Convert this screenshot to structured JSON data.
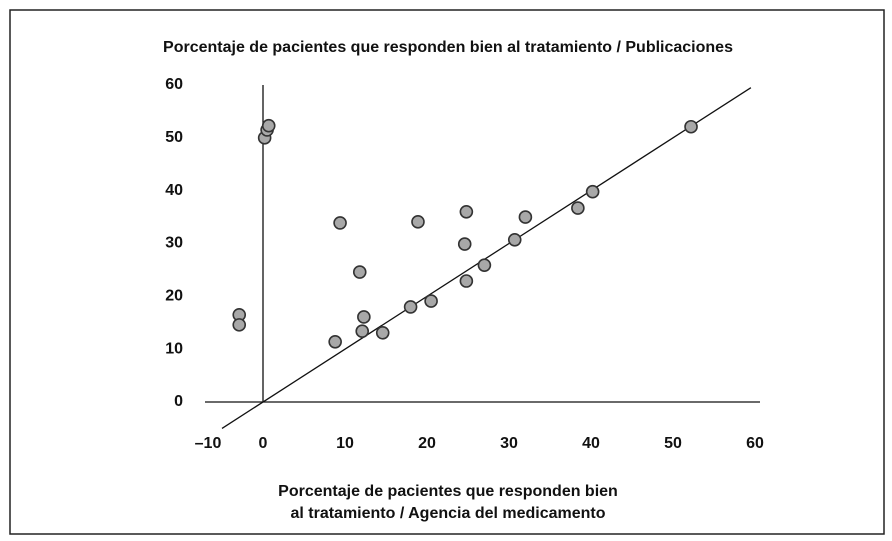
{
  "chart_data": {
    "type": "scatter",
    "title": "Porcentaje de pacientes que responden bien al tratamiento / Publicaciones",
    "xlabel": [
      "Porcentaje de pacientes que responden bien",
      "al tratamiento / Agencia del medicamento"
    ],
    "x": [
      -2.9,
      -2.9,
      0.2,
      0.5,
      0.7,
      9.4,
      8.8,
      11.8,
      12.3,
      12.1,
      14.6,
      18,
      18.9,
      20.5,
      24.8,
      24.6,
      24.8,
      27,
      30.7,
      32,
      38.4,
      40.2,
      52.2
    ],
    "values": [
      16.5,
      14.6,
      50,
      51.5,
      52.3,
      33.9,
      11.4,
      24.6,
      16.1,
      13.4,
      13.1,
      18,
      34.1,
      19.1,
      36,
      29.9,
      22.9,
      25.9,
      30.7,
      35,
      36.7,
      39.8,
      52.1
    ],
    "color": "#a8a8a8",
    "identity_line": {
      "x": [
        -5,
        59.5
      ],
      "y": [
        -5,
        59.5
      ]
    },
    "xlim": [
      -10,
      60
    ],
    "xticks": [
      {
        "value": -10,
        "label": "–10"
      },
      0,
      10,
      20,
      30,
      40,
      50,
      60
    ],
    "ylim": [
      0,
      60
    ],
    "yticks": [
      0,
      10,
      20,
      30,
      40,
      50,
      60
    ],
    "grid": false
  }
}
